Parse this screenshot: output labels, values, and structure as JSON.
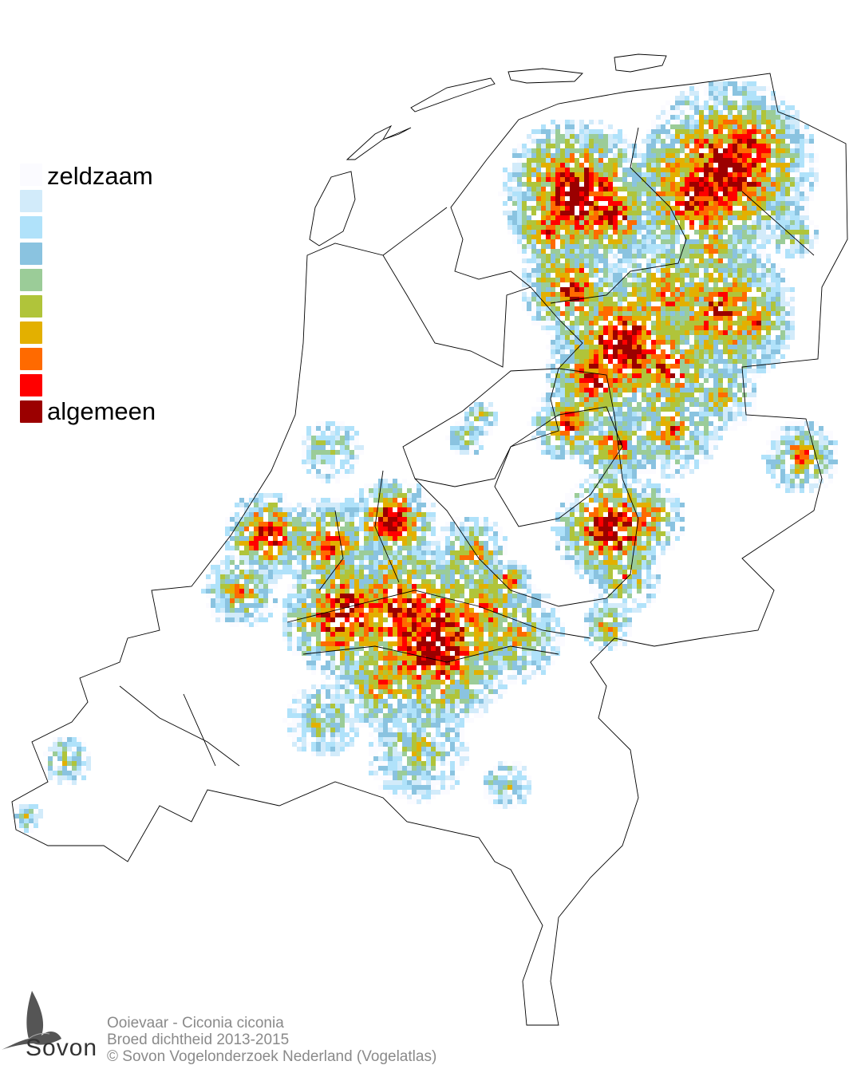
{
  "legend": {
    "top_label": "zeldzaam",
    "bottom_label": "algemeen",
    "colors": [
      "#fbfbff",
      "#d2ebfa",
      "#b0e2fa",
      "#8ac3e0",
      "#9bcc98",
      "#b0c43a",
      "#e3b000",
      "#ff6a00",
      "#ff0000",
      "#9b0000"
    ]
  },
  "footer": {
    "species": "Ooievaar - Ciconia ciconia",
    "subtitle": "Broed dichtheid 2013-2015",
    "copyright": "© Sovon Vogelonderzoek Nederland (Vogelatlas)"
  },
  "logo": {
    "text": "Sovon",
    "icon": "swallow-icon"
  }
}
